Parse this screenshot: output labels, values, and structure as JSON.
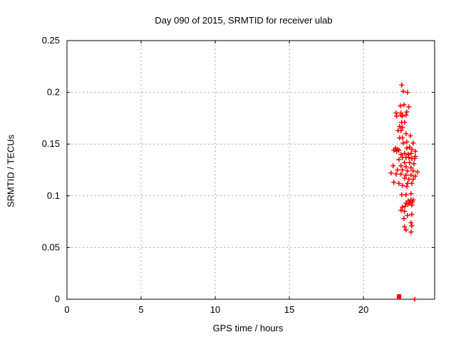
{
  "chart_data": {
    "type": "scatter",
    "title": "Day 090 of 2015, SRMTID for receiver ulab",
    "xlabel": "GPS time / hours",
    "ylabel": "SRMTID / TECUs",
    "xlim": [
      0,
      24.8
    ],
    "ylim": [
      0,
      0.25
    ],
    "xticks": {
      "values": [
        0,
        5,
        10,
        15,
        20
      ],
      "labels": [
        "0",
        "5",
        "10",
        "15",
        "20"
      ]
    },
    "yticks": {
      "values": [
        0,
        0.05,
        0.1,
        0.15,
        0.2,
        0.25
      ],
      "labels": [
        "0",
        "0.05",
        "0.1",
        "0.15",
        "0.2",
        "0.25"
      ]
    },
    "grid": true,
    "legend": "none",
    "colors": {
      "marker": "#ff0000",
      "grid": "#b3b3b3",
      "axis": "#000000",
      "background": "#ffffff"
    },
    "marker": {
      "shape": "plus",
      "size": 7
    },
    "series": [
      {
        "name": "SRMTID",
        "points": [
          [
            22.58,
            0.207
          ],
          [
            22.68,
            0.201
          ],
          [
            22.97,
            0.2
          ],
          [
            22.49,
            0.187
          ],
          [
            22.73,
            0.188
          ],
          [
            23.06,
            0.186
          ],
          [
            22.2,
            0.18
          ],
          [
            22.53,
            0.18
          ],
          [
            22.92,
            0.181
          ],
          [
            22.24,
            0.177
          ],
          [
            22.63,
            0.177
          ],
          [
            22.53,
            0.178
          ],
          [
            22.87,
            0.178
          ],
          [
            22.58,
            0.171
          ],
          [
            22.77,
            0.171
          ],
          [
            22.44,
            0.167
          ],
          [
            22.63,
            0.166
          ],
          [
            22.34,
            0.163
          ],
          [
            22.53,
            0.163
          ],
          [
            22.87,
            0.16
          ],
          [
            23.16,
            0.158
          ],
          [
            22.44,
            0.156
          ],
          [
            22.63,
            0.156
          ],
          [
            22.68,
            0.151
          ],
          [
            22.92,
            0.152
          ],
          [
            23.35,
            0.151
          ],
          [
            22.15,
            0.146
          ],
          [
            22.29,
            0.145
          ],
          [
            22.05,
            0.144
          ],
          [
            22.39,
            0.144
          ],
          [
            22.24,
            0.143
          ],
          [
            22.92,
            0.146
          ],
          [
            23.11,
            0.147
          ],
          [
            23.26,
            0.145
          ],
          [
            23.49,
            0.143
          ],
          [
            22.53,
            0.14
          ],
          [
            22.77,
            0.141
          ],
          [
            23.01,
            0.14
          ],
          [
            23.21,
            0.141
          ],
          [
            23.49,
            0.138
          ],
          [
            22.39,
            0.135
          ],
          [
            22.63,
            0.137
          ],
          [
            22.87,
            0.137
          ],
          [
            23.06,
            0.137
          ],
          [
            23.26,
            0.136
          ],
          [
            23.45,
            0.136
          ],
          [
            22.0,
            0.129
          ],
          [
            22.77,
            0.132
          ],
          [
            23.11,
            0.132
          ],
          [
            23.4,
            0.131
          ],
          [
            22.53,
            0.129
          ],
          [
            22.87,
            0.128
          ],
          [
            23.21,
            0.127
          ],
          [
            22.29,
            0.125
          ],
          [
            22.63,
            0.125
          ],
          [
            22.97,
            0.124
          ],
          [
            23.35,
            0.124
          ],
          [
            23.64,
            0.123
          ],
          [
            21.86,
            0.122
          ],
          [
            22.2,
            0.121
          ],
          [
            22.53,
            0.121
          ],
          [
            22.87,
            0.12
          ],
          [
            23.21,
            0.12
          ],
          [
            23.49,
            0.119
          ],
          [
            22.77,
            0.117
          ],
          [
            23.06,
            0.116
          ],
          [
            23.35,
            0.116
          ],
          [
            22.05,
            0.113
          ],
          [
            22.39,
            0.112
          ],
          [
            22.97,
            0.112
          ],
          [
            23.26,
            0.112
          ],
          [
            22.63,
            0.11
          ],
          [
            22.92,
            0.109
          ],
          [
            22.58,
            0.101
          ],
          [
            22.87,
            0.101
          ],
          [
            23.21,
            0.102
          ],
          [
            23.01,
            0.095
          ],
          [
            23.21,
            0.096
          ],
          [
            23.35,
            0.096
          ],
          [
            22.87,
            0.093
          ],
          [
            23.11,
            0.093
          ],
          [
            23.3,
            0.094
          ],
          [
            23.01,
            0.092
          ],
          [
            23.26,
            0.091
          ],
          [
            22.63,
            0.089
          ],
          [
            22.82,
            0.09
          ],
          [
            22.53,
            0.086
          ],
          [
            22.77,
            0.085
          ],
          [
            22.97,
            0.081
          ],
          [
            23.26,
            0.082
          ],
          [
            22.73,
            0.078
          ],
          [
            23.21,
            0.074
          ],
          [
            23.26,
            0.071
          ],
          [
            22.77,
            0.07
          ],
          [
            22.87,
            0.067
          ],
          [
            23.21,
            0.065
          ]
        ]
      }
    ],
    "zero_markers": [
      {
        "x": 22.4,
        "y": 0,
        "shape": "filled-square"
      },
      {
        "x": 23.45,
        "y": 0,
        "shape": "plus"
      }
    ]
  }
}
